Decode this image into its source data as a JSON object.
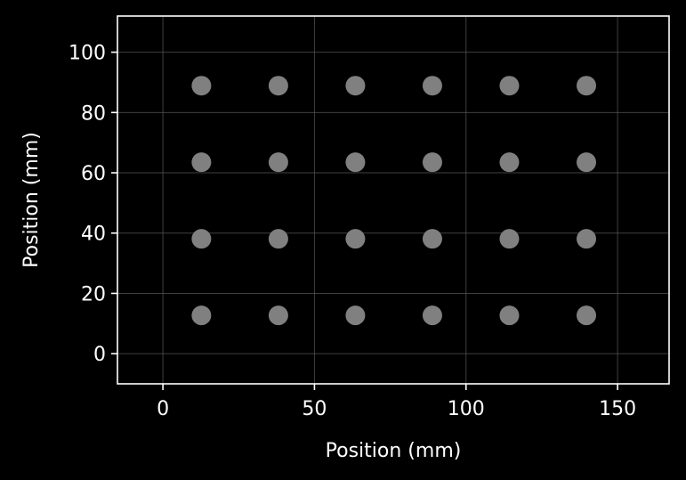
{
  "chart_data": {
    "type": "scatter",
    "title": "",
    "xlabel": "Position (mm)",
    "ylabel": "Position (mm)",
    "xlim": [
      -15,
      167
    ],
    "ylim": [
      -10,
      112
    ],
    "xticks": [
      0,
      50,
      100,
      150
    ],
    "yticks": [
      0,
      20,
      40,
      60,
      80,
      100
    ],
    "grid": true,
    "legend": "none",
    "series": [
      {
        "x": [
          12.7,
          38.1,
          63.5,
          88.9,
          114.3,
          139.7,
          12.7,
          38.1,
          63.5,
          88.9,
          114.3,
          139.7,
          12.7,
          38.1,
          63.5,
          88.9,
          114.3,
          139.7,
          12.7,
          38.1,
          63.5,
          88.9,
          114.3,
          139.7
        ],
        "y": [
          88.9,
          88.9,
          88.9,
          88.9,
          88.9,
          88.9,
          63.5,
          63.5,
          63.5,
          63.5,
          63.5,
          63.5,
          38.1,
          38.1,
          38.1,
          38.1,
          38.1,
          38.1,
          12.7,
          12.7,
          12.7,
          12.7,
          12.7,
          12.7
        ],
        "color": "#808080"
      }
    ],
    "colors": {
      "background": "#000000",
      "axes": "#ffffff",
      "grid": "#5a5a5a",
      "text": "#ffffff"
    }
  }
}
